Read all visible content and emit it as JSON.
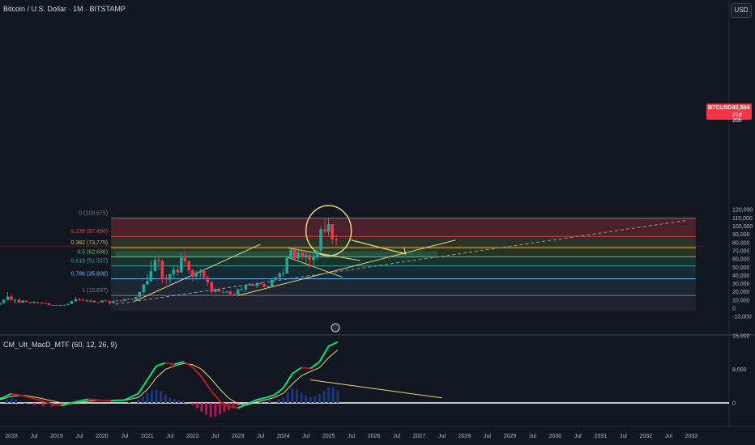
{
  "header": {
    "title": "Bitcoin / U.S. Dollar · 1M · BITSTAMP"
  },
  "currency_button": "USD",
  "last_price": {
    "symbol": "BTCUSD",
    "price": "82,504",
    "countdown": "21d 20h",
    "color": "#f23645"
  },
  "indicator": {
    "title": "CM_Ult_MacD_MTF (60, 12, 26, 9)"
  },
  "colors": {
    "background": "#131722",
    "up": "#26a69a",
    "down": "#f23645",
    "macd_up": "#00e676",
    "macd_down": "#b71c1c",
    "signal": "#e8d67a",
    "drawing": "#e8d67a",
    "hist": "#1e3a8a"
  },
  "chart_data": {
    "type": "candlestick",
    "price_axis": {
      "ylim": [
        -10000,
        122000
      ],
      "ticks": [
        -10000,
        0,
        10000,
        20000,
        30000,
        40000,
        50000,
        60000,
        70000,
        80000,
        90000,
        100000,
        110000,
        120000
      ],
      "tick_labels": [
        "-10,000",
        "0",
        "10,000",
        "20,000",
        "30,000",
        "40,000",
        "50,000",
        "60,000",
        "70,000",
        "80,000",
        "90,000",
        "100,000",
        "110,000",
        "120,000"
      ]
    },
    "macd_axis": {
      "ticks": [
        0,
        8000,
        16000
      ],
      "tick_labels": [
        "0",
        "8,000",
        "16,000"
      ]
    },
    "time_axis": {
      "labels": [
        "2018",
        "Jul",
        "2019",
        "Jul",
        "2020",
        "Jul",
        "2021",
        "Jul",
        "2022",
        "Jul",
        "2023",
        "Jul",
        "2024",
        "Jul",
        "2025",
        "Jul",
        "2026",
        "Jul",
        "2027",
        "Jul",
        "2028",
        "Jul",
        "2029",
        "Jul",
        "2030",
        "Jul",
        "2031",
        "Jul",
        "2032",
        "Jul",
        "2033"
      ],
      "start_year": 2017.5,
      "end_year": 2033.4
    },
    "fib_levels": [
      {
        "ratio": 0,
        "price": 109675,
        "label": "0 (109,675)",
        "color": "#787b86"
      },
      {
        "ratio": 0.236,
        "price": 87496,
        "label": "0.236 (87,496)",
        "color": "#f23645"
      },
      {
        "ratio": 0.382,
        "price": 73775,
        "label": "0.382 (73,775)",
        "color": "#c0ca33"
      },
      {
        "ratio": 0.5,
        "price": 62686,
        "label": "0.5 (62,686)",
        "color": "#66bb6a"
      },
      {
        "ratio": 0.618,
        "price": 51597,
        "label": "0.618 (51,597)",
        "color": "#26a69a"
      },
      {
        "ratio": 0.786,
        "price": 35808,
        "label": "0.786 (35,808)",
        "color": "#64b5f6"
      },
      {
        "ratio": 1,
        "price": 15697,
        "label": "1 (15,697)",
        "color": "#787b86"
      }
    ],
    "fib_zone_colors": [
      "#7a2a33",
      "#3a4a30",
      "#3d4a22",
      "#1f4a35",
      "#1c3d46",
      "#2a3446",
      "#2b2e3a",
      "#1c3250"
    ],
    "fib_extension_bottom": -3500,
    "candles": [
      [
        2017.5,
        2500,
        2900,
        2100,
        2800
      ],
      [
        2017.58,
        2800,
        4700,
        2800,
        4700
      ],
      [
        2017.67,
        4700,
        5000,
        3000,
        4300
      ],
      [
        2017.75,
        4300,
        6400,
        4100,
        6400
      ],
      [
        2017.83,
        6400,
        11000,
        5600,
        10000
      ],
      [
        2017.92,
        10000,
        19700,
        10000,
        14100
      ],
      [
        2018.0,
        14100,
        17200,
        9400,
        10200
      ],
      [
        2018.08,
        10200,
        11800,
        6000,
        10300
      ],
      [
        2018.17,
        10300,
        11700,
        6500,
        6900
      ],
      [
        2018.25,
        6900,
        9700,
        6500,
        9200
      ],
      [
        2018.33,
        9200,
        9900,
        7400,
        7500
      ],
      [
        2018.42,
        7500,
        7800,
        5800,
        6400
      ],
      [
        2018.5,
        6400,
        8500,
        6100,
        7700
      ],
      [
        2018.58,
        7700,
        7800,
        5900,
        7000
      ],
      [
        2018.67,
        7000,
        7400,
        6100,
        6600
      ],
      [
        2018.75,
        6600,
        6800,
        6100,
        6300
      ],
      [
        2018.83,
        6300,
        6500,
        3500,
        4000
      ],
      [
        2018.92,
        4000,
        4300,
        3100,
        3700
      ],
      [
        2019.0,
        3700,
        4100,
        3300,
        3400
      ],
      [
        2019.08,
        3400,
        4200,
        3400,
        3800
      ],
      [
        2019.17,
        3800,
        4100,
        3700,
        4100
      ],
      [
        2019.25,
        4100,
        5600,
        4100,
        5300
      ],
      [
        2019.33,
        5300,
        9000,
        5300,
        8600
      ],
      [
        2019.42,
        8600,
        13800,
        7500,
        10800
      ],
      [
        2019.5,
        10800,
        13100,
        9100,
        10100
      ],
      [
        2019.58,
        10100,
        12300,
        9400,
        9600
      ],
      [
        2019.67,
        9600,
        10900,
        7700,
        8300
      ],
      [
        2019.75,
        8300,
        10500,
        7400,
        9200
      ],
      [
        2019.83,
        9200,
        9500,
        6500,
        7600
      ],
      [
        2019.92,
        7600,
        7700,
        6400,
        7200
      ],
      [
        2020.0,
        7200,
        9600,
        6900,
        9400
      ],
      [
        2020.08,
        9400,
        10500,
        8500,
        8600
      ],
      [
        2020.17,
        8600,
        9200,
        3800,
        6400
      ],
      [
        2020.25,
        6400,
        9500,
        6200,
        8600
      ],
      [
        2020.33,
        8600,
        10100,
        8100,
        9500
      ],
      [
        2020.42,
        9500,
        10400,
        8900,
        9100
      ],
      [
        2020.5,
        9100,
        11400,
        9000,
        11300
      ],
      [
        2020.58,
        11300,
        12400,
        10600,
        11600
      ],
      [
        2020.67,
        11600,
        12000,
        9800,
        10800
      ],
      [
        2020.75,
        10800,
        14100,
        10400,
        13800
      ],
      [
        2020.83,
        13800,
        19900,
        13200,
        19700
      ],
      [
        2020.92,
        19700,
        29300,
        17600,
        29000
      ],
      [
        2021.0,
        29000,
        41900,
        28100,
        33100
      ],
      [
        2021.08,
        33100,
        58300,
        32300,
        45200
      ],
      [
        2021.17,
        45200,
        61700,
        45000,
        58800
      ],
      [
        2021.25,
        58800,
        64800,
        47000,
        57700
      ],
      [
        2021.33,
        57700,
        59500,
        30000,
        37300
      ],
      [
        2021.42,
        37300,
        41300,
        28800,
        35000
      ],
      [
        2021.5,
        35000,
        42400,
        29300,
        41500
      ],
      [
        2021.58,
        41500,
        50500,
        37400,
        47100
      ],
      [
        2021.67,
        47100,
        52900,
        39600,
        43800
      ],
      [
        2021.75,
        43800,
        67000,
        43300,
        61300
      ],
      [
        2021.83,
        61300,
        69000,
        53300,
        57000
      ],
      [
        2021.92,
        57000,
        59100,
        42000,
        46200
      ],
      [
        2022.0,
        46200,
        47900,
        32900,
        38500
      ],
      [
        2022.08,
        38500,
        45800,
        34300,
        43200
      ],
      [
        2022.17,
        43200,
        48200,
        37200,
        45500
      ],
      [
        2022.25,
        45500,
        47400,
        37700,
        37700
      ],
      [
        2022.33,
        37700,
        39900,
        26700,
        31800
      ],
      [
        2022.42,
        31800,
        32400,
        17600,
        19900
      ],
      [
        2022.5,
        19900,
        24700,
        18800,
        23300
      ],
      [
        2022.58,
        23300,
        25200,
        19600,
        20000
      ],
      [
        2022.67,
        20000,
        22800,
        18200,
        19400
      ],
      [
        2022.75,
        19400,
        20900,
        18200,
        20500
      ],
      [
        2022.83,
        20500,
        21500,
        15500,
        17200
      ],
      [
        2022.92,
        17200,
        18400,
        16300,
        16500
      ],
      [
        2023.0,
        16500,
        23900,
        16500,
        23100
      ],
      [
        2023.08,
        23100,
        25300,
        21400,
        23100
      ],
      [
        2023.17,
        23100,
        29200,
        19600,
        28500
      ],
      [
        2023.25,
        28500,
        31000,
        26900,
        29200
      ],
      [
        2023.33,
        29200,
        29800,
        26800,
        27200
      ],
      [
        2023.42,
        27200,
        31400,
        24800,
        30500
      ],
      [
        2023.5,
        30500,
        31800,
        29000,
        29200
      ],
      [
        2023.58,
        29200,
        30200,
        25300,
        26000
      ],
      [
        2023.67,
        26000,
        28000,
        24900,
        27000
      ],
      [
        2023.75,
        27000,
        35300,
        26700,
        34700
      ],
      [
        2023.83,
        34700,
        38400,
        34100,
        37700
      ],
      [
        2023.92,
        37700,
        44700,
        37600,
        42300
      ],
      [
        2024.0,
        42300,
        48900,
        38500,
        42600
      ],
      [
        2024.08,
        42600,
        64000,
        41900,
        61200
      ],
      [
        2024.17,
        61200,
        73800,
        59400,
        71300
      ],
      [
        2024.25,
        71300,
        72800,
        59700,
        60600
      ],
      [
        2024.33,
        60600,
        71900,
        56500,
        67500
      ],
      [
        2024.42,
        67500,
        71900,
        58400,
        62700
      ],
      [
        2024.5,
        62700,
        70000,
        53500,
        64600
      ],
      [
        2024.58,
        64600,
        65600,
        49000,
        58900
      ],
      [
        2024.67,
        58900,
        66500,
        52500,
        63300
      ],
      [
        2024.75,
        63300,
        73600,
        58900,
        70200
      ],
      [
        2024.83,
        70200,
        99800,
        66800,
        96400
      ],
      [
        2024.92,
        96400,
        108300,
        90500,
        93400
      ],
      [
        2025.0,
        93400,
        109675,
        89300,
        102400
      ],
      [
        2025.08,
        102400,
        102500,
        78200,
        84300
      ],
      [
        2025.17,
        84300,
        88800,
        76600,
        82504
      ]
    ],
    "macd": [
      [
        2017.5,
        600,
        500
      ],
      [
        2017.8,
        1200,
        900
      ],
      [
        2018.0,
        2200,
        1600
      ],
      [
        2018.3,
        1600,
        1800
      ],
      [
        2018.6,
        700,
        1200
      ],
      [
        2018.9,
        -300,
        500
      ],
      [
        2019.1,
        -600,
        0
      ],
      [
        2019.4,
        200,
        -100
      ],
      [
        2019.7,
        900,
        400
      ],
      [
        2019.9,
        700,
        600
      ],
      [
        2020.2,
        500,
        600
      ],
      [
        2020.5,
        700,
        600
      ],
      [
        2020.8,
        2200,
        1300
      ],
      [
        2021.0,
        5500,
        3200
      ],
      [
        2021.2,
        8800,
        6000
      ],
      [
        2021.4,
        9500,
        8000
      ],
      [
        2021.6,
        9200,
        8800
      ],
      [
        2021.8,
        9800,
        9400
      ],
      [
        2022.0,
        8500,
        9100
      ],
      [
        2022.2,
        6200,
        8000
      ],
      [
        2022.4,
        3000,
        5800
      ],
      [
        2022.6,
        400,
        3300
      ],
      [
        2022.8,
        -900,
        1100
      ],
      [
        2023.0,
        -1200,
        -200
      ],
      [
        2023.2,
        -300,
        -500
      ],
      [
        2023.4,
        700,
        200
      ],
      [
        2023.6,
        1200,
        700
      ],
      [
        2023.8,
        1900,
        1300
      ],
      [
        2024.0,
        3500,
        2300
      ],
      [
        2024.2,
        7000,
        4500
      ],
      [
        2024.4,
        8400,
        6500
      ],
      [
        2024.6,
        8200,
        7500
      ],
      [
        2024.8,
        9800,
        8400
      ],
      [
        2025.0,
        13500,
        10800
      ],
      [
        2025.2,
        14500,
        12600
      ]
    ],
    "macd_hist": [
      [
        2017.9,
        900
      ],
      [
        2018.0,
        1200
      ],
      [
        2018.1,
        800
      ],
      [
        2018.3,
        -200
      ],
      [
        2018.5,
        -600
      ],
      [
        2018.7,
        -800
      ],
      [
        2018.9,
        -900
      ],
      [
        2019.1,
        -700
      ],
      [
        2019.3,
        300
      ],
      [
        2019.5,
        600
      ],
      [
        2020.6,
        200
      ],
      [
        2020.8,
        900
      ],
      [
        2020.9,
        1500
      ],
      [
        2021.0,
        2300
      ],
      [
        2021.1,
        3000
      ],
      [
        2021.2,
        3200
      ],
      [
        2021.3,
        2800
      ],
      [
        2021.4,
        2000
      ],
      [
        2021.5,
        1200
      ],
      [
        2021.6,
        900
      ],
      [
        2021.7,
        600
      ],
      [
        2021.8,
        500
      ],
      [
        2022.0,
        -600
      ],
      [
        2022.1,
        -1300
      ],
      [
        2022.2,
        -2100
      ],
      [
        2022.3,
        -2800
      ],
      [
        2022.4,
        -3400
      ],
      [
        2022.5,
        -3200
      ],
      [
        2022.6,
        -2700
      ],
      [
        2022.7,
        -2200
      ],
      [
        2022.8,
        -1700
      ],
      [
        2022.9,
        -1100
      ],
      [
        2023.0,
        -600
      ],
      [
        2023.5,
        400
      ],
      [
        2023.7,
        700
      ],
      [
        2023.9,
        900
      ],
      [
        2024.0,
        1300
      ],
      [
        2024.1,
        2600
      ],
      [
        2024.2,
        3600
      ],
      [
        2024.3,
        3200
      ],
      [
        2024.4,
        2400
      ],
      [
        2024.5,
        1800
      ],
      [
        2024.6,
        1400
      ],
      [
        2024.7,
        1600
      ],
      [
        2024.8,
        2100
      ],
      [
        2024.9,
        2900
      ],
      [
        2025.0,
        3700
      ],
      [
        2025.1,
        3600
      ],
      [
        2025.2,
        3000
      ]
    ]
  }
}
